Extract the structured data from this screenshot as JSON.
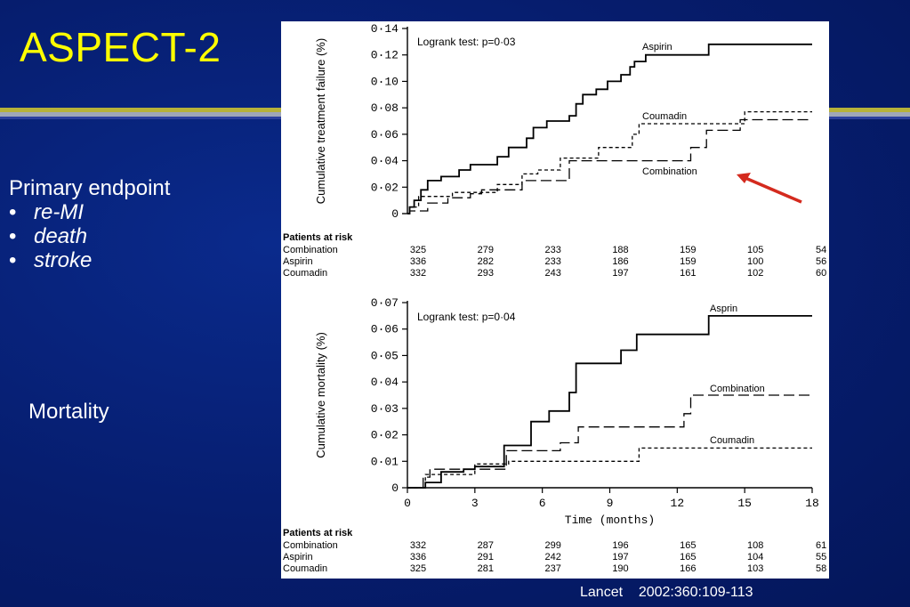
{
  "slide": {
    "title": "ASPECT-2",
    "primary_endpoint": {
      "heading": "Primary endpoint",
      "items": [
        "re-MI",
        "death",
        "stroke"
      ]
    },
    "mortality_label": "Mortality",
    "citation": "Lancet    2002:360:109-113",
    "colors": {
      "background": "#061d6e",
      "title": "#ffff00",
      "arrow": "#d42a1e"
    }
  },
  "chart_data": [
    {
      "type": "line",
      "step": true,
      "ylabel": "Cumulative treatment failure (%)",
      "xlabel": "",
      "annotation": "Logrank test: p=0·03",
      "ylim": [
        0,
        0.14
      ],
      "xlim": [
        0,
        18
      ],
      "ytick_labels": [
        "0",
        "0·02",
        "0·04",
        "0·06",
        "0·08",
        "0·10",
        "0·12",
        "0·14"
      ],
      "series": [
        {
          "name": "Aspirin",
          "style": "solid",
          "x": [
            0,
            0.1,
            0.3,
            0.6,
            0.9,
            1.5,
            2.3,
            2.8,
            4.0,
            4.5,
            5.3,
            5.6,
            6.2,
            7.2,
            7.5,
            7.8,
            8.4,
            8.9,
            9.5,
            9.9,
            10.1,
            10.6,
            13.4,
            18
          ],
          "y": [
            0,
            0.005,
            0.01,
            0.018,
            0.025,
            0.028,
            0.033,
            0.037,
            0.043,
            0.05,
            0.057,
            0.065,
            0.07,
            0.074,
            0.083,
            0.09,
            0.094,
            0.1,
            0.105,
            0.111,
            0.115,
            0.12,
            0.128,
            0.128
          ]
        },
        {
          "name": "Coumadin",
          "style": "dashed",
          "x": [
            0,
            0.1,
            0.5,
            2.0,
            4.0,
            5.1,
            5.8,
            6.8,
            8.5,
            10.0,
            10.3,
            15.0,
            18
          ],
          "y": [
            0,
            0.005,
            0.013,
            0.016,
            0.022,
            0.03,
            0.033,
            0.042,
            0.05,
            0.06,
            0.068,
            0.077,
            0.077
          ]
        },
        {
          "name": "Combination",
          "style": "longdash",
          "x": [
            0,
            0.1,
            0.9,
            1.8,
            2.8,
            3.3,
            5.1,
            7.2,
            10.0,
            12.6,
            13.3,
            14.8,
            18
          ],
          "y": [
            0,
            0.002,
            0.008,
            0.012,
            0.015,
            0.018,
            0.025,
            0.04,
            0.04,
            0.05,
            0.063,
            0.071,
            0.071
          ]
        }
      ],
      "at_risk": {
        "heading": "Patients at risk",
        "rows": [
          {
            "label": "Combination",
            "values": [
              "325",
              "279",
              "233",
              "188",
              "159",
              "105",
              "54"
            ]
          },
          {
            "label": "Aspirin",
            "values": [
              "336",
              "282",
              "233",
              "186",
              "159",
              "100",
              "56"
            ]
          },
          {
            "label": "Coumadin",
            "values": [
              "332",
              "293",
              "243",
              "197",
              "161",
              "102",
              "60"
            ]
          }
        ]
      }
    },
    {
      "type": "line",
      "step": true,
      "ylabel": "Cumulative mortality (%)",
      "xlabel": "Time (months)",
      "annotation": "Logrank test: p=0·04",
      "ylim": [
        0,
        0.07
      ],
      "xlim": [
        0,
        18
      ],
      "xticks": [
        0,
        3,
        6,
        9,
        12,
        15,
        18
      ],
      "ytick_labels": [
        "0",
        "0·01",
        "0·02",
        "0·03",
        "0·04",
        "0·05",
        "0·06",
        "0·07"
      ],
      "series": [
        {
          "name": "Asprin",
          "style": "solid",
          "x": [
            0,
            0.8,
            1.5,
            2.5,
            3.0,
            4.3,
            5.5,
            6.3,
            7.2,
            7.5,
            9.5,
            10.2,
            13.4,
            18
          ],
          "y": [
            0,
            0.002,
            0.006,
            0.007,
            0.008,
            0.016,
            0.025,
            0.029,
            0.036,
            0.047,
            0.052,
            0.058,
            0.065,
            0.065
          ]
        },
        {
          "name": "Combination",
          "style": "longdash",
          "x": [
            0,
            0.7,
            1.0,
            3.0,
            4.4,
            6.8,
            7.6,
            11.2,
            12.3,
            12.6,
            18
          ],
          "y": [
            0,
            0.004,
            0.007,
            0.007,
            0.014,
            0.017,
            0.023,
            0.023,
            0.028,
            0.035,
            0.035
          ]
        },
        {
          "name": "Coumadin",
          "style": "dashed",
          "x": [
            0,
            0.8,
            3.0,
            3.9,
            4.5,
            10.3,
            18
          ],
          "y": [
            0,
            0.005,
            0.009,
            0.009,
            0.01,
            0.015,
            0.015
          ]
        }
      ],
      "at_risk": {
        "heading": "Patients at risk",
        "rows": [
          {
            "label": "Combination",
            "values": [
              "332",
              "287",
              "299",
              "196",
              "165",
              "108",
              "61"
            ]
          },
          {
            "label": "Aspirin",
            "values": [
              "336",
              "291",
              "242",
              "197",
              "165",
              "104",
              "55"
            ]
          },
          {
            "label": "Coumadin",
            "values": [
              "325",
              "281",
              "237",
              "190",
              "166",
              "103",
              "58"
            ]
          }
        ]
      }
    }
  ]
}
